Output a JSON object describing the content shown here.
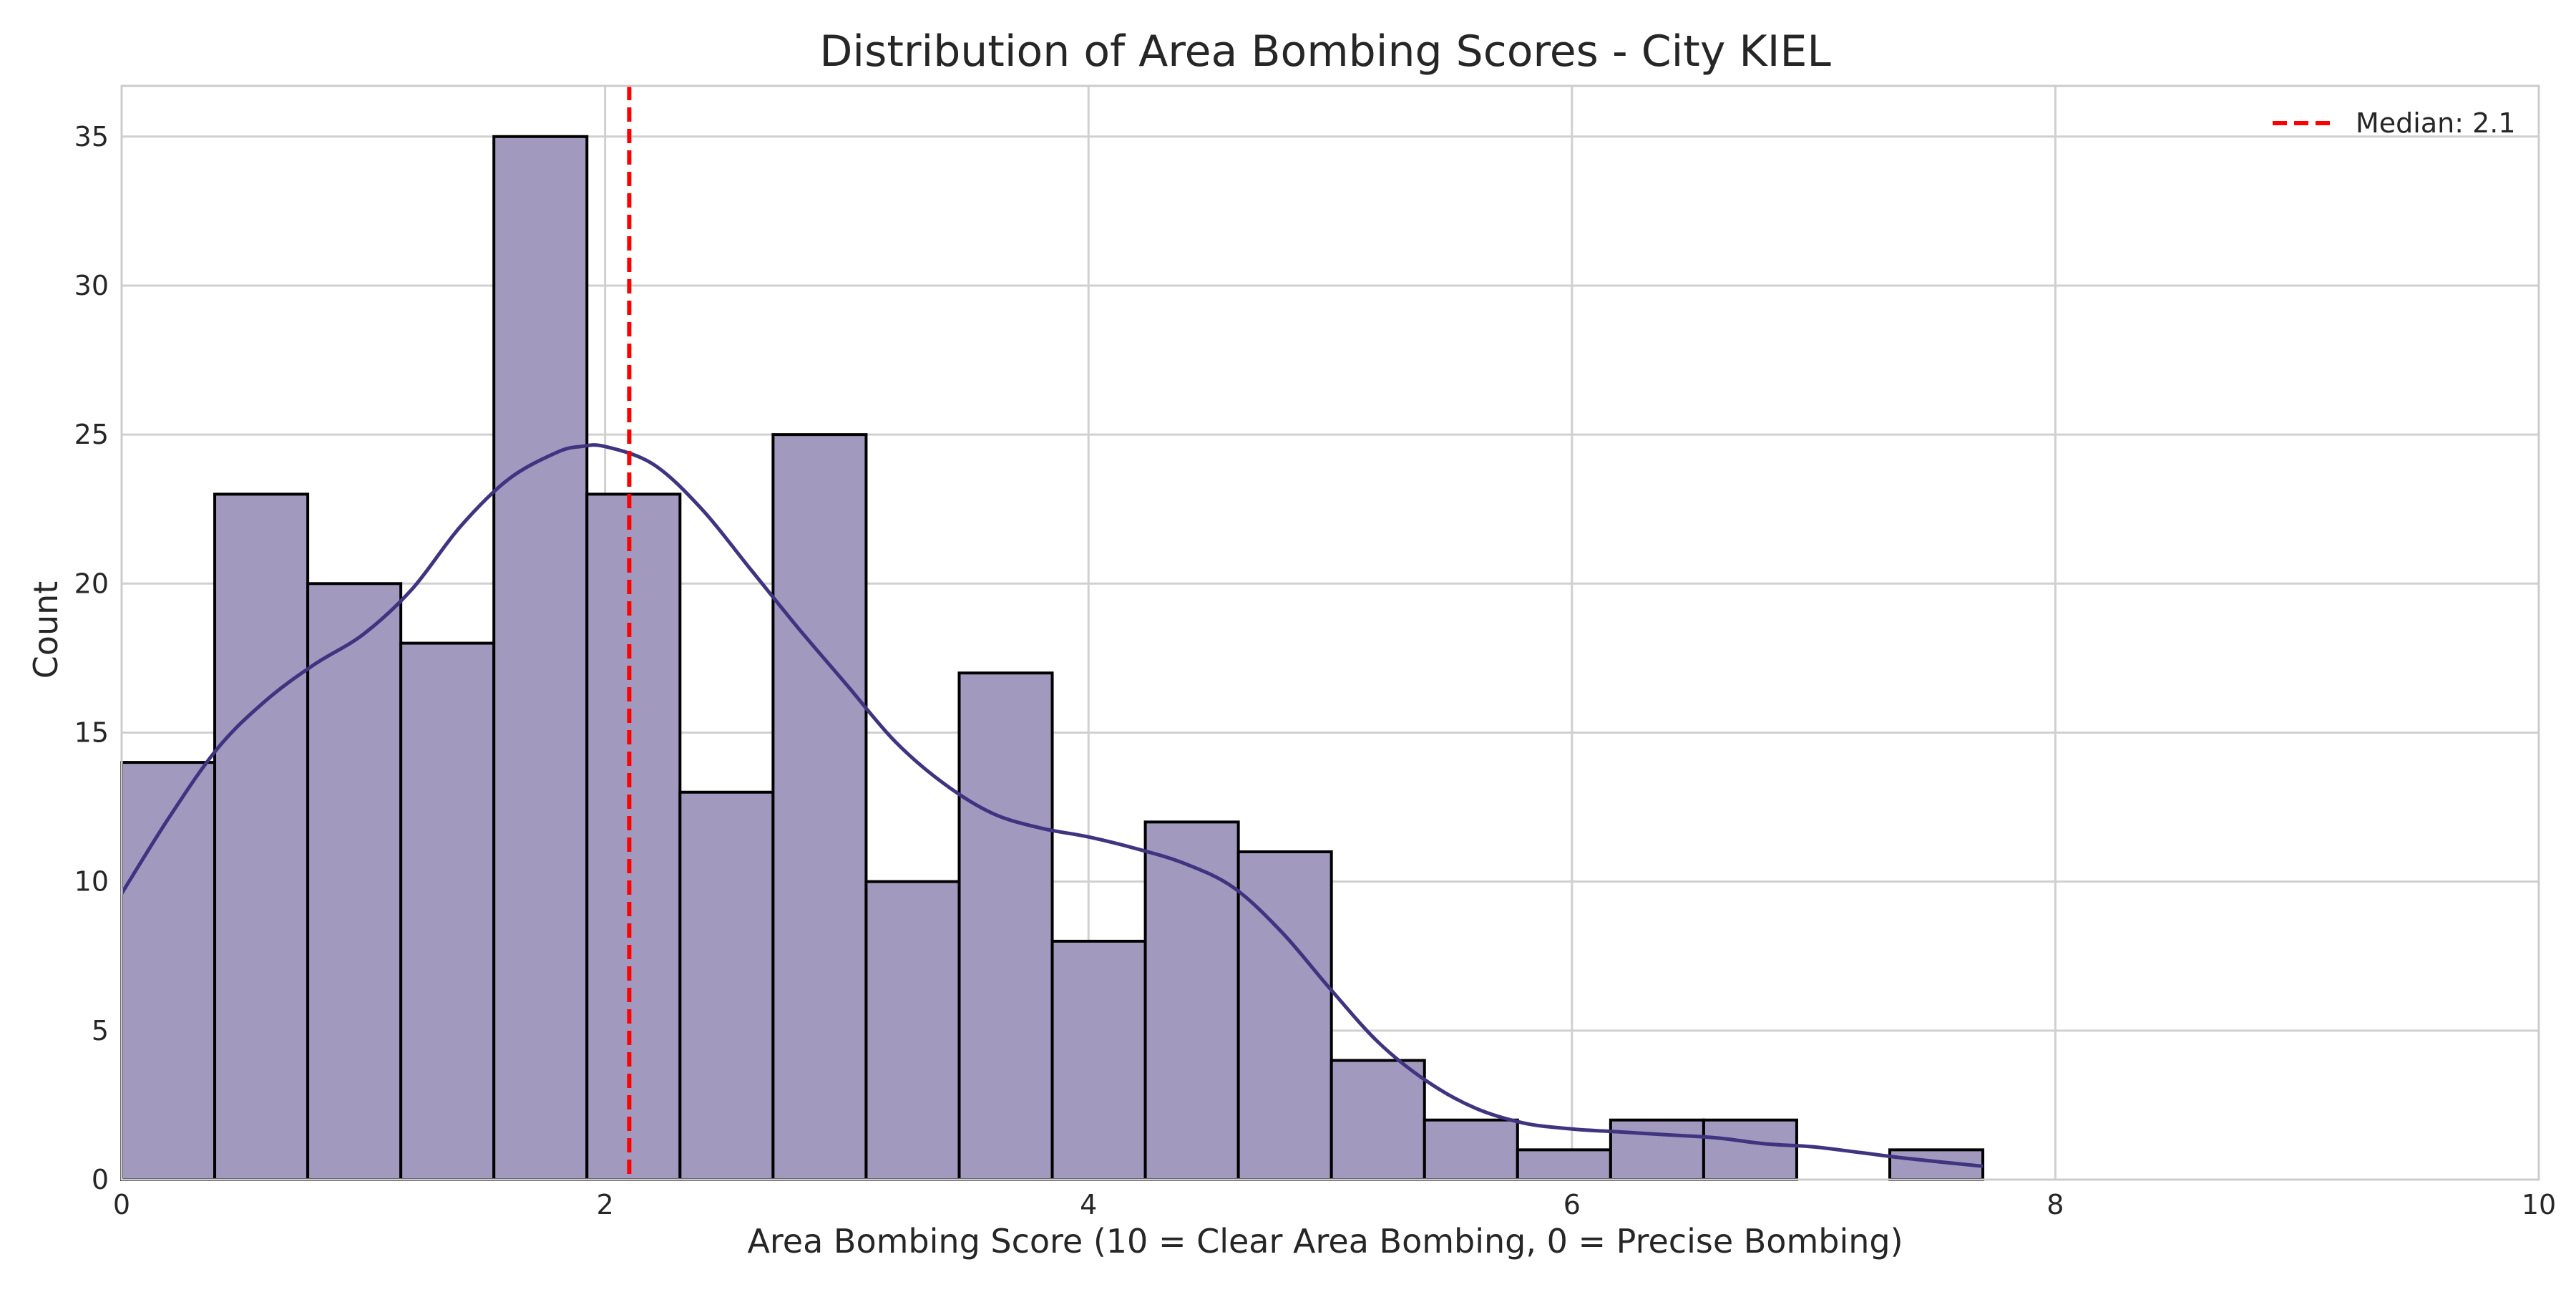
{
  "chart_data": {
    "type": "bar",
    "title": "Distribution of Area Bombing Scores - City KIEL",
    "xlabel": "Area Bombing Score (10 = Clear Area Bombing, 0 = Precise Bombing)",
    "ylabel": "Count",
    "xlim": [
      0,
      10
    ],
    "ylim": [
      0,
      36.7
    ],
    "x_ticks": [
      0,
      2,
      4,
      6,
      8,
      10
    ],
    "y_ticks": [
      0,
      5,
      10,
      15,
      20,
      25,
      30,
      35
    ],
    "grid": true,
    "bins": [
      {
        "x0": 0.0,
        "x1": 0.385,
        "count": 14
      },
      {
        "x0": 0.385,
        "x1": 0.77,
        "count": 23
      },
      {
        "x0": 0.77,
        "x1": 1.155,
        "count": 20
      },
      {
        "x0": 1.155,
        "x1": 1.54,
        "count": 18
      },
      {
        "x0": 1.54,
        "x1": 1.925,
        "count": 35
      },
      {
        "x0": 1.925,
        "x1": 2.31,
        "count": 23
      },
      {
        "x0": 2.31,
        "x1": 2.695,
        "count": 13
      },
      {
        "x0": 2.695,
        "x1": 3.08,
        "count": 25
      },
      {
        "x0": 3.08,
        "x1": 3.465,
        "count": 10
      },
      {
        "x0": 3.465,
        "x1": 3.85,
        "count": 17
      },
      {
        "x0": 3.85,
        "x1": 4.235,
        "count": 8
      },
      {
        "x0": 4.235,
        "x1": 4.62,
        "count": 12
      },
      {
        "x0": 4.62,
        "x1": 5.005,
        "count": 11
      },
      {
        "x0": 5.005,
        "x1": 5.39,
        "count": 4
      },
      {
        "x0": 5.39,
        "x1": 5.775,
        "count": 2
      },
      {
        "x0": 5.775,
        "x1": 6.16,
        "count": 1
      },
      {
        "x0": 6.16,
        "x1": 6.545,
        "count": 2
      },
      {
        "x0": 6.545,
        "x1": 6.93,
        "count": 2
      },
      {
        "x0": 6.93,
        "x1": 7.315,
        "count": 0
      },
      {
        "x0": 7.315,
        "x1": 7.7,
        "count": 1
      }
    ],
    "kde": {
      "x": [
        0.0,
        0.2,
        0.4,
        0.6,
        0.8,
        1.0,
        1.2,
        1.4,
        1.6,
        1.8,
        1.9,
        2.0,
        2.2,
        2.4,
        2.6,
        2.8,
        3.0,
        3.2,
        3.4,
        3.6,
        3.8,
        4.0,
        4.2,
        4.4,
        4.6,
        4.8,
        5.0,
        5.2,
        5.4,
        5.6,
        5.8,
        6.0,
        6.2,
        6.4,
        6.6,
        6.8,
        7.0,
        7.2,
        7.4,
        7.7
      ],
      "y": [
        9.6,
        12.2,
        14.5,
        16.1,
        17.3,
        18.3,
        19.8,
        21.9,
        23.5,
        24.4,
        24.6,
        24.6,
        24.0,
        22.5,
        20.5,
        18.5,
        16.6,
        14.7,
        13.3,
        12.3,
        11.8,
        11.5,
        11.1,
        10.6,
        9.8,
        8.3,
        6.4,
        4.6,
        3.3,
        2.4,
        1.9,
        1.7,
        1.6,
        1.5,
        1.4,
        1.2,
        1.1,
        0.9,
        0.7,
        0.45
      ]
    },
    "median": {
      "value": 2.1,
      "label": "Median: 2.1"
    },
    "legend_position": "top-right",
    "colors": {
      "bar_fill": "#a299bf",
      "bar_edge": "#000000",
      "kde_line": "#3f3480",
      "median_line": "#ff0000",
      "grid": "#d0d0d0",
      "axes_edge": "#cccccc"
    }
  }
}
